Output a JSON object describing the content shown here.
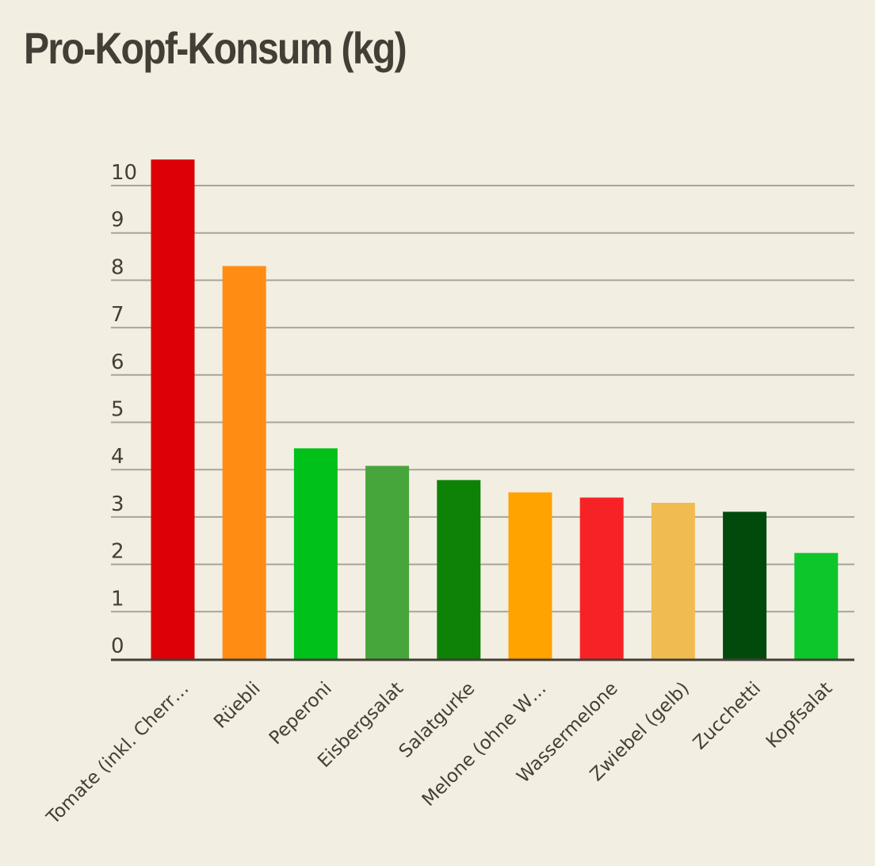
{
  "chart_data": {
    "type": "bar",
    "title": "Pro-Kopf-Konsum (kg)",
    "categories": [
      "Tomate (inkl. Cherr…",
      "Rüebli",
      "Peperoni",
      "Eisbergsalat",
      "Salatgurke",
      "Melone (ohne W…",
      "Wassermelone",
      "Zwiebel (gelb)",
      "Zucchetti",
      "Kopfsalat"
    ],
    "values": [
      10.55,
      8.3,
      4.45,
      4.08,
      3.78,
      3.52,
      3.41,
      3.3,
      3.11,
      2.24
    ],
    "colors": [
      "#dd0007",
      "#ff8c13",
      "#00c01a",
      "#47a63b",
      "#0e8107",
      "#ffa300",
      "#f72226",
      "#f0bb51",
      "#004a0b",
      "#0cc62c"
    ],
    "yticks": [
      0,
      1,
      2,
      3,
      4,
      5,
      6,
      7,
      8,
      9,
      10
    ],
    "ylim": [
      0,
      10.6
    ],
    "xlabel": "",
    "ylabel": "",
    "grid": true,
    "legend": "none"
  }
}
